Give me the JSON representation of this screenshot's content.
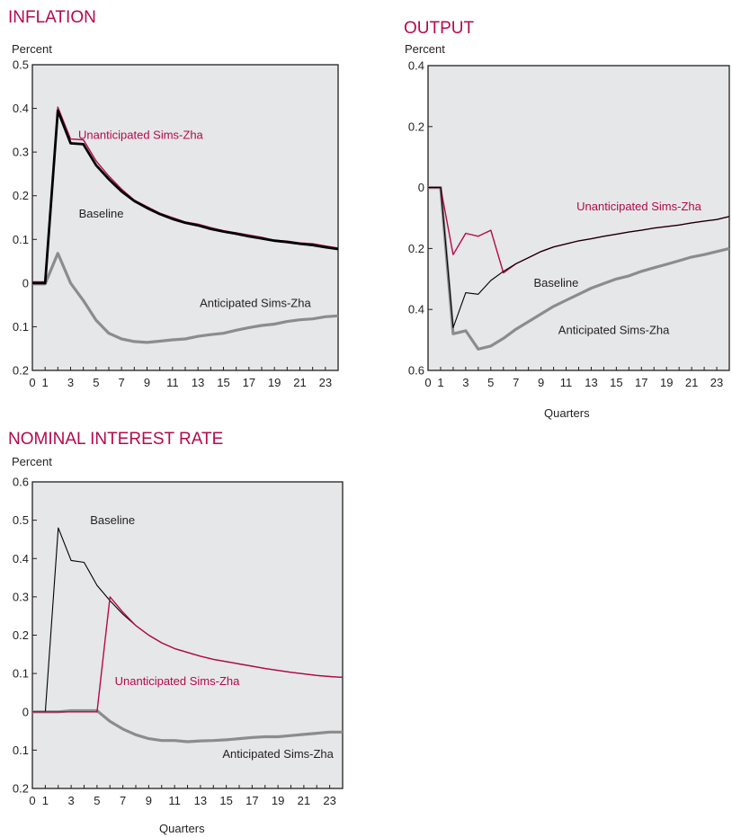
{
  "colors": {
    "background": "#ffffff",
    "plot_bg": "#e6e7e8",
    "accent": "#b5094e",
    "baseline": "#000000",
    "unanticipated": "#b5094e",
    "anticipated": "#8c8c8c"
  },
  "chart_data": [
    {
      "type": "line",
      "title": "INFLATION",
      "ylabel": "Percent",
      "xlabel": "",
      "xlim": [
        0,
        24
      ],
      "ylim": [
        -0.2,
        0.5
      ],
      "x_ticks": [
        0,
        1,
        3,
        5,
        7,
        9,
        11,
        13,
        15,
        17,
        19,
        21,
        23
      ],
      "y_ticks": [
        0.5,
        0.4,
        0.3,
        0.2,
        0.1,
        0,
        -0.1,
        -0.2
      ],
      "y_tick_labels": [
        "0.5",
        "0.4",
        "0.3",
        "0.2",
        "0.1",
        "0",
        "0.1",
        "0.2"
      ],
      "grid": false,
      "series": [
        {
          "name": "Unanticipated Sims-Zha",
          "style": "thin-accent",
          "x": [
            0,
            1,
            2,
            3,
            4,
            5,
            6,
            7,
            8,
            9,
            10,
            11,
            12,
            13,
            14,
            15,
            16,
            17,
            18,
            19,
            20,
            21,
            22,
            23,
            24
          ],
          "y": [
            0.003,
            0.003,
            0.403,
            0.33,
            0.328,
            0.28,
            0.245,
            0.215,
            0.19,
            0.175,
            0.16,
            0.15,
            0.14,
            0.135,
            0.127,
            0.12,
            0.115,
            0.11,
            0.105,
            0.098,
            0.096,
            0.092,
            0.09,
            0.085,
            0.08
          ]
        },
        {
          "name": "Baseline",
          "style": "thick-black",
          "x": [
            0,
            1,
            2,
            3,
            4,
            5,
            6,
            7,
            8,
            9,
            10,
            11,
            12,
            13,
            14,
            15,
            16,
            17,
            18,
            19,
            20,
            21,
            22,
            23,
            24
          ],
          "y": [
            0.0,
            0.0,
            0.395,
            0.32,
            0.318,
            0.27,
            0.238,
            0.21,
            0.188,
            0.172,
            0.158,
            0.147,
            0.138,
            0.132,
            0.124,
            0.118,
            0.113,
            0.107,
            0.102,
            0.097,
            0.094,
            0.09,
            0.087,
            0.082,
            0.078
          ]
        },
        {
          "name": "Anticipated Sims-Zha",
          "style": "thick-gray",
          "x": [
            0,
            1,
            2,
            3,
            4,
            5,
            6,
            7,
            8,
            9,
            10,
            11,
            12,
            13,
            14,
            15,
            16,
            17,
            18,
            19,
            20,
            21,
            22,
            23,
            24
          ],
          "y": [
            -0.002,
            -0.002,
            0.068,
            0.0,
            -0.04,
            -0.085,
            -0.115,
            -0.128,
            -0.134,
            -0.136,
            -0.133,
            -0.13,
            -0.128,
            -0.122,
            -0.118,
            -0.115,
            -0.108,
            -0.102,
            -0.097,
            -0.094,
            -0.088,
            -0.084,
            -0.082,
            -0.077,
            -0.075
          ]
        }
      ],
      "annotations": [
        {
          "text": "Unanticipated Sims-Zha",
          "x": 8.5,
          "y": 0.33,
          "color": "accent"
        },
        {
          "text": "Baseline",
          "x": 5.4,
          "y": 0.15,
          "color": "black"
        },
        {
          "text": "Anticipated Sims-Zha",
          "x": 17.5,
          "y": -0.055,
          "color": "black"
        }
      ]
    },
    {
      "type": "line",
      "title": "OUTPUT",
      "ylabel": "Percent",
      "xlabel": "Quarters",
      "xlim": [
        0,
        24
      ],
      "ylim": [
        -0.6,
        0.4
      ],
      "x_ticks": [
        0,
        1,
        3,
        5,
        7,
        9,
        11,
        13,
        15,
        17,
        19,
        21,
        23
      ],
      "y_ticks": [
        0.4,
        0.2,
        0,
        -0.2,
        -0.4,
        -0.6
      ],
      "y_tick_labels": [
        "0.4",
        "0.2",
        "0",
        "0.2",
        "0.4",
        "0.6"
      ],
      "grid": false,
      "series": [
        {
          "name": "Unanticipated Sims-Zha",
          "style": "thin-accent",
          "x": [
            0,
            1,
            2,
            3,
            4,
            5,
            6,
            7,
            8,
            9,
            10,
            11,
            12,
            13,
            14,
            15,
            16,
            17,
            18,
            19,
            20,
            21,
            22,
            23,
            24
          ],
          "y": [
            0.0,
            0.0,
            -0.22,
            -0.15,
            -0.16,
            -0.14,
            -0.28,
            -0.25,
            -0.23,
            -0.21,
            -0.195,
            -0.185,
            -0.175,
            -0.168,
            -0.16,
            -0.153,
            -0.146,
            -0.14,
            -0.133,
            -0.128,
            -0.123,
            -0.116,
            -0.11,
            -0.105,
            -0.095
          ]
        },
        {
          "name": "Baseline",
          "style": "thin-black",
          "x": [
            0,
            1,
            2,
            3,
            4,
            5,
            6,
            7,
            8,
            9,
            10,
            11,
            12,
            13,
            14,
            15,
            16,
            17,
            18,
            19,
            20,
            21,
            22,
            23,
            24
          ],
          "y": [
            0.0,
            0.0,
            -0.46,
            -0.345,
            -0.35,
            -0.305,
            -0.275,
            -0.25,
            -0.23,
            -0.21,
            -0.195,
            -0.185,
            -0.175,
            -0.168,
            -0.16,
            -0.153,
            -0.146,
            -0.14,
            -0.133,
            -0.128,
            -0.123,
            -0.116,
            -0.11,
            -0.105,
            -0.095
          ]
        },
        {
          "name": "Anticipated Sims-Zha",
          "style": "thick-gray",
          "x": [
            0,
            1,
            2,
            3,
            4,
            5,
            6,
            7,
            8,
            9,
            10,
            11,
            12,
            13,
            14,
            15,
            16,
            17,
            18,
            19,
            20,
            21,
            22,
            23,
            24
          ],
          "y": [
            0.0,
            0.0,
            -0.48,
            -0.47,
            -0.53,
            -0.52,
            -0.495,
            -0.465,
            -0.44,
            -0.415,
            -0.39,
            -0.37,
            -0.35,
            -0.33,
            -0.315,
            -0.3,
            -0.29,
            -0.275,
            -0.263,
            -0.252,
            -0.24,
            -0.228,
            -0.22,
            -0.21,
            -0.2
          ]
        }
      ],
      "annotations": [
        {
          "text": "Unanticipated Sims-Zha",
          "x": 16.8,
          "y": -0.075,
          "color": "accent"
        },
        {
          "text": "Baseline",
          "x": 10.2,
          "y": -0.325,
          "color": "black"
        },
        {
          "text": "Anticipated Sims-Zha",
          "x": 14.8,
          "y": -0.48,
          "color": "black"
        }
      ]
    },
    {
      "type": "line",
      "title": "NOMINAL INTEREST RATE",
      "ylabel": "Percent",
      "xlabel": "Quarters",
      "xlim": [
        0,
        24
      ],
      "ylim": [
        -0.2,
        0.6
      ],
      "x_ticks": [
        0,
        1,
        3,
        5,
        7,
        9,
        11,
        13,
        15,
        17,
        19,
        21,
        23
      ],
      "y_ticks": [
        0.6,
        0.5,
        0.4,
        0.3,
        0.2,
        0.1,
        0,
        -0.1,
        -0.2
      ],
      "y_tick_labels": [
        "0.6",
        "0.5",
        "0.4",
        "0.3",
        "0.2",
        "0.1",
        "0",
        "0.1",
        "0.2"
      ],
      "grid": false,
      "series": [
        {
          "name": "Baseline",
          "style": "thin-black",
          "x": [
            0,
            1,
            2,
            3,
            4,
            5,
            6,
            7,
            8,
            9,
            10,
            11,
            12,
            13,
            14,
            15,
            16,
            17,
            18,
            19,
            20,
            21,
            22,
            23,
            24
          ],
          "y": [
            0.0,
            0.0,
            0.48,
            0.395,
            0.39,
            0.33,
            0.29,
            0.255,
            0.225,
            0.2,
            0.18,
            0.165,
            0.155,
            0.145,
            0.137,
            0.131,
            0.125,
            0.119,
            0.113,
            0.108,
            0.103,
            0.099,
            0.095,
            0.092,
            0.09
          ]
        },
        {
          "name": "Unanticipated Sims-Zha",
          "style": "thin-accent",
          "x": [
            0,
            1,
            2,
            3,
            4,
            5,
            6,
            7,
            8,
            9,
            10,
            11,
            12,
            13,
            14,
            15,
            16,
            17,
            18,
            19,
            20,
            21,
            22,
            23,
            24
          ],
          "y": [
            0.0,
            0.0,
            0.0,
            0.0,
            0.0,
            0.0,
            0.3,
            0.26,
            0.225,
            0.2,
            0.18,
            0.165,
            0.155,
            0.145,
            0.137,
            0.131,
            0.125,
            0.119,
            0.113,
            0.108,
            0.103,
            0.099,
            0.095,
            0.092,
            0.09
          ]
        },
        {
          "name": "Anticipated Sims-Zha",
          "style": "thick-gray",
          "x": [
            0,
            1,
            2,
            3,
            4,
            5,
            6,
            7,
            8,
            9,
            10,
            11,
            12,
            13,
            14,
            15,
            16,
            17,
            18,
            19,
            20,
            21,
            22,
            23,
            24
          ],
          "y": [
            0.0,
            0.0,
            0.0,
            0.003,
            0.003,
            0.003,
            -0.025,
            -0.045,
            -0.06,
            -0.07,
            -0.075,
            -0.075,
            -0.078,
            -0.076,
            -0.075,
            -0.073,
            -0.07,
            -0.067,
            -0.065,
            -0.065,
            -0.062,
            -0.059,
            -0.056,
            -0.053,
            -0.053
          ]
        }
      ],
      "annotations": [
        {
          "text": "Baseline",
          "x": 6.2,
          "y": 0.49,
          "color": "black"
        },
        {
          "text": "Unanticipated Sims-Zha",
          "x": 11.2,
          "y": 0.07,
          "color": "accent"
        },
        {
          "text": "Anticipated Sims-Zha",
          "x": 19.0,
          "y": -0.12,
          "color": "black"
        }
      ]
    }
  ]
}
